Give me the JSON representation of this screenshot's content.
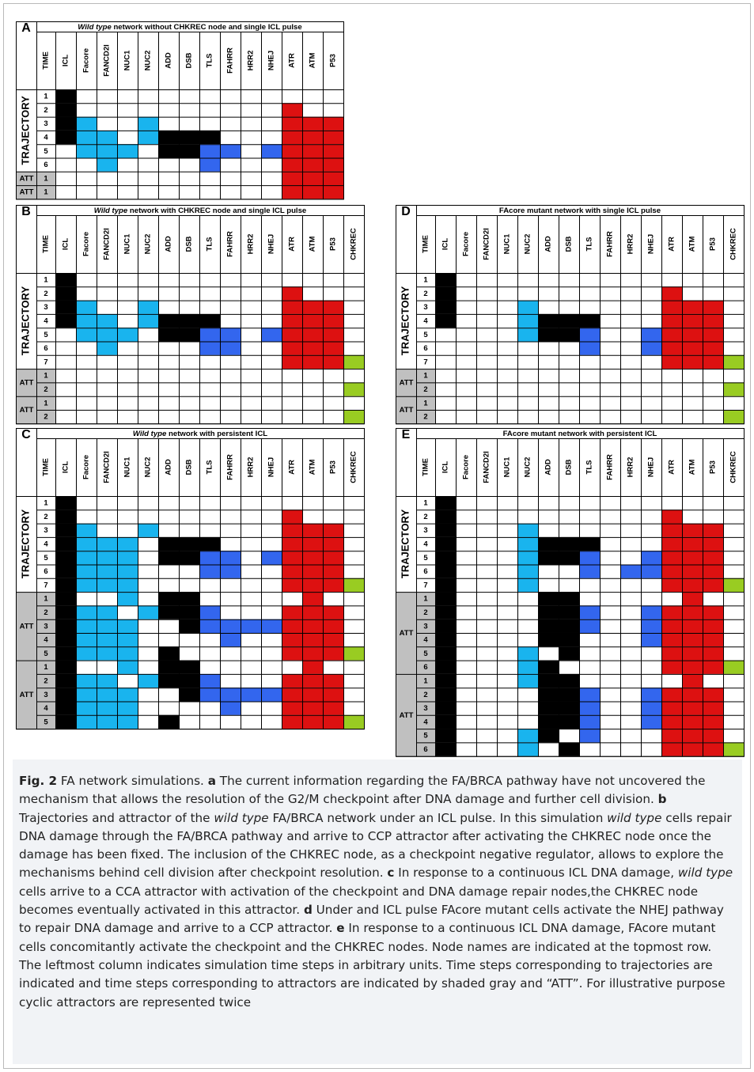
{
  "nodes": [
    "ICL",
    "Facore",
    "FANCD2I",
    "NUC1",
    "NUC2",
    "ADD",
    "DSB",
    "TLS",
    "FAHRR",
    "HRR2",
    "NHEJ",
    "ATR",
    "ATM",
    "P53",
    "CHKREC"
  ],
  "labels": {
    "time": "TIME",
    "trajectory": "TRAJECTORY",
    "att": "ATT"
  },
  "colors": {
    "black": "#000000",
    "cyan": "#19b4ee",
    "blue": "#3366ee",
    "red": "#dd1111",
    "green": "#99cc22",
    "gray": "#c0c0c0",
    "white": "#ffffff"
  },
  "panels": [
    {
      "id": "A",
      "title_em": "Wild type",
      "title_rest": " network without CHKREC node and single ICL pulse",
      "chkrec": false,
      "traj": [
        {
          "t": "1",
          "on": {
            "ICL": "k"
          }
        },
        {
          "t": "2",
          "on": {
            "ICL": "k",
            "ATR": "r"
          }
        },
        {
          "t": "3",
          "on": {
            "ICL": "k",
            "Facore": "c",
            "NUC2": "c",
            "ATR": "r",
            "ATM": "r",
            "P53": "r"
          }
        },
        {
          "t": "4",
          "on": {
            "ICL": "k",
            "Facore": "c",
            "FANCD2I": "c",
            "NUC2": "c",
            "ADD": "k",
            "DSB": "k",
            "TLS": "k",
            "ATR": "r",
            "ATM": "r",
            "P53": "r"
          }
        },
        {
          "t": "5",
          "on": {
            "Facore": "c",
            "FANCD2I": "c",
            "NUC1": "c",
            "ADD": "k",
            "DSB": "k",
            "TLS": "b",
            "FAHRR": "b",
            "NHEJ": "b",
            "ATR": "r",
            "ATM": "r",
            "P53": "r"
          }
        },
        {
          "t": "6",
          "on": {
            "FANCD2I": "c",
            "TLS": "b",
            "ATR": "r",
            "ATM": "r",
            "P53": "r"
          }
        }
      ],
      "att": [
        [
          {
            "t": "1",
            "on": {
              "ATR": "r",
              "ATM": "r",
              "P53": "r"
            }
          }
        ],
        [
          {
            "t": "1",
            "on": {
              "ATR": "r",
              "ATM": "r",
              "P53": "r"
            }
          }
        ]
      ]
    },
    {
      "id": "B",
      "title_em": "Wild type",
      "title_rest": " network with CHKREC node and single ICL pulse",
      "chkrec": true,
      "traj": [
        {
          "t": "1",
          "on": {
            "ICL": "k"
          }
        },
        {
          "t": "2",
          "on": {
            "ICL": "k",
            "ATR": "r"
          }
        },
        {
          "t": "3",
          "on": {
            "ICL": "k",
            "Facore": "c",
            "NUC2": "c",
            "ATR": "r",
            "ATM": "r",
            "P53": "r"
          }
        },
        {
          "t": "4",
          "on": {
            "ICL": "k",
            "Facore": "c",
            "FANCD2I": "c",
            "NUC2": "c",
            "ADD": "k",
            "DSB": "k",
            "TLS": "k",
            "ATR": "r",
            "ATM": "r",
            "P53": "r"
          }
        },
        {
          "t": "5",
          "on": {
            "Facore": "c",
            "FANCD2I": "c",
            "NUC1": "c",
            "ADD": "k",
            "DSB": "k",
            "TLS": "b",
            "FAHRR": "b",
            "NHEJ": "b",
            "ATR": "r",
            "ATM": "r",
            "P53": "r"
          }
        },
        {
          "t": "6",
          "on": {
            "FANCD2I": "c",
            "TLS": "b",
            "FAHRR": "b",
            "ATR": "r",
            "ATM": "r",
            "P53": "r"
          }
        },
        {
          "t": "7",
          "on": {
            "ATR": "r",
            "ATM": "r",
            "P53": "r",
            "CHKREC": "g"
          }
        }
      ],
      "att": [
        [
          {
            "t": "1",
            "on": {}
          },
          {
            "t": "2",
            "on": {
              "CHKREC": "g"
            }
          }
        ],
        [
          {
            "t": "1",
            "on": {}
          },
          {
            "t": "2",
            "on": {
              "CHKREC": "g"
            }
          }
        ]
      ]
    },
    {
      "id": "C",
      "title_em": "Wild type",
      "title_rest": " network with persistent ICL",
      "chkrec": true,
      "traj": [
        {
          "t": "1",
          "on": {
            "ICL": "k"
          }
        },
        {
          "t": "2",
          "on": {
            "ICL": "k",
            "ATR": "r"
          }
        },
        {
          "t": "3",
          "on": {
            "ICL": "k",
            "Facore": "c",
            "NUC2": "c",
            "ATR": "r",
            "ATM": "r",
            "P53": "r"
          }
        },
        {
          "t": "4",
          "on": {
            "ICL": "k",
            "Facore": "c",
            "FANCD2I": "c",
            "NUC1": "c",
            "ADD": "k",
            "DSB": "k",
            "TLS": "k",
            "ATR": "r",
            "ATM": "r",
            "P53": "r"
          }
        },
        {
          "t": "5",
          "on": {
            "ICL": "k",
            "Facore": "c",
            "FANCD2I": "c",
            "NUC1": "c",
            "ADD": "k",
            "DSB": "k",
            "TLS": "b",
            "FAHRR": "b",
            "NHEJ": "b",
            "ATR": "r",
            "ATM": "r",
            "P53": "r"
          }
        },
        {
          "t": "6",
          "on": {
            "ICL": "k",
            "Facore": "c",
            "FANCD2I": "c",
            "NUC1": "c",
            "TLS": "b",
            "FAHRR": "b",
            "ATR": "r",
            "ATM": "r",
            "P53": "r"
          }
        },
        {
          "t": "7",
          "on": {
            "ICL": "k",
            "Facore": "c",
            "FANCD2I": "c",
            "NUC1": "c",
            "ATR": "r",
            "ATM": "r",
            "P53": "r",
            "CHKREC": "g"
          }
        }
      ],
      "att": [
        [
          {
            "t": "1",
            "on": {
              "ICL": "k",
              "NUC1": "c",
              "ADD": "k",
              "DSB": "k",
              "ATM": "r"
            }
          },
          {
            "t": "2",
            "on": {
              "ICL": "k",
              "Facore": "c",
              "FANCD2I": "c",
              "NUC2": "c",
              "ADD": "k",
              "DSB": "k",
              "TLS": "b",
              "ATR": "r",
              "ATM": "r",
              "P53": "r"
            }
          },
          {
            "t": "3",
            "on": {
              "ICL": "k",
              "Facore": "c",
              "FANCD2I": "c",
              "NUC1": "c",
              "DSB": "k",
              "TLS": "b",
              "FAHRR": "b",
              "HRR2": "b",
              "NHEJ": "b",
              "ATR": "r",
              "ATM": "r",
              "P53": "r"
            }
          },
          {
            "t": "4",
            "on": {
              "ICL": "k",
              "Facore": "c",
              "FANCD2I": "c",
              "NUC1": "c",
              "FAHRR": "b",
              "ATR": "r",
              "ATM": "r",
              "P53": "r"
            }
          },
          {
            "t": "5",
            "on": {
              "ICL": "k",
              "Facore": "c",
              "FANCD2I": "c",
              "NUC1": "c",
              "ADD": "k",
              "ATR": "r",
              "ATM": "r",
              "P53": "r",
              "CHKREC": "g"
            }
          }
        ],
        [
          {
            "t": "1",
            "on": {
              "ICL": "k",
              "NUC1": "c",
              "ADD": "k",
              "DSB": "k",
              "ATM": "r"
            }
          },
          {
            "t": "2",
            "on": {
              "ICL": "k",
              "Facore": "c",
              "FANCD2I": "c",
              "NUC2": "c",
              "ADD": "k",
              "DSB": "k",
              "TLS": "b",
              "ATR": "r",
              "ATM": "r",
              "P53": "r"
            }
          },
          {
            "t": "3",
            "on": {
              "ICL": "k",
              "Facore": "c",
              "FANCD2I": "c",
              "NUC1": "c",
              "DSB": "k",
              "TLS": "b",
              "FAHRR": "b",
              "HRR2": "b",
              "NHEJ": "b",
              "ATR": "r",
              "ATM": "r",
              "P53": "r"
            }
          },
          {
            "t": "4",
            "on": {
              "ICL": "k",
              "Facore": "c",
              "FANCD2I": "c",
              "NUC1": "c",
              "FAHRR": "b",
              "ATR": "r",
              "ATM": "r",
              "P53": "r"
            }
          },
          {
            "t": "5",
            "on": {
              "ICL": "k",
              "Facore": "c",
              "FANCD2I": "c",
              "NUC1": "c",
              "ADD": "k",
              "ATR": "r",
              "ATM": "r",
              "P53": "r",
              "CHKREC": "g"
            }
          }
        ]
      ]
    },
    {
      "id": "D",
      "title_em": "",
      "title_rest": "FAcore mutant network with single ICL pulse",
      "chkrec": true,
      "traj": [
        {
          "t": "1",
          "on": {
            "ICL": "k"
          }
        },
        {
          "t": "2",
          "on": {
            "ICL": "k",
            "ATR": "r"
          }
        },
        {
          "t": "3",
          "on": {
            "ICL": "k",
            "NUC2": "c",
            "ATR": "r",
            "ATM": "r",
            "P53": "r"
          }
        },
        {
          "t": "4",
          "on": {
            "ICL": "k",
            "NUC2": "c",
            "ADD": "k",
            "DSB": "k",
            "TLS": "k",
            "ATR": "r",
            "ATM": "r",
            "P53": "r"
          }
        },
        {
          "t": "5",
          "on": {
            "NUC2": "c",
            "ADD": "k",
            "DSB": "k",
            "TLS": "b",
            "NHEJ": "b",
            "ATR": "r",
            "ATM": "r",
            "P53": "r"
          }
        },
        {
          "t": "6",
          "on": {
            "TLS": "b",
            "NHEJ": "b",
            "ATR": "r",
            "ATM": "r",
            "P53": "r"
          }
        },
        {
          "t": "7",
          "on": {
            "ATR": "r",
            "ATM": "r",
            "P53": "r",
            "CHKREC": "g"
          }
        }
      ],
      "att": [
        [
          {
            "t": "1",
            "on": {}
          },
          {
            "t": "2",
            "on": {
              "CHKREC": "g"
            }
          }
        ],
        [
          {
            "t": "1",
            "on": {}
          },
          {
            "t": "2",
            "on": {
              "CHKREC": "g"
            }
          }
        ]
      ]
    },
    {
      "id": "E",
      "title_em": "",
      "title_rest": "FAcore mutant network with persistent ICL",
      "chkrec": true,
      "traj": [
        {
          "t": "1",
          "on": {
            "ICL": "k"
          }
        },
        {
          "t": "2",
          "on": {
            "ICL": "k",
            "ATR": "r"
          }
        },
        {
          "t": "3",
          "on": {
            "ICL": "k",
            "NUC2": "c",
            "ATR": "r",
            "ATM": "r",
            "P53": "r"
          }
        },
        {
          "t": "4",
          "on": {
            "ICL": "k",
            "NUC2": "c",
            "ADD": "k",
            "DSB": "k",
            "TLS": "k",
            "ATR": "r",
            "ATM": "r",
            "P53": "r"
          }
        },
        {
          "t": "5",
          "on": {
            "ICL": "k",
            "NUC2": "c",
            "ADD": "k",
            "DSB": "k",
            "TLS": "b",
            "NHEJ": "b",
            "ATR": "r",
            "ATM": "r",
            "P53": "r"
          }
        },
        {
          "t": "6",
          "on": {
            "ICL": "k",
            "NUC2": "c",
            "TLS": "b",
            "HRR2": "b",
            "NHEJ": "b",
            "ATR": "r",
            "ATM": "r",
            "P53": "r"
          }
        },
        {
          "t": "7",
          "on": {
            "ICL": "k",
            "NUC2": "c",
            "ATR": "r",
            "ATM": "r",
            "P53": "r",
            "CHKREC": "g"
          }
        }
      ],
      "att": [
        [
          {
            "t": "1",
            "on": {
              "ICL": "k",
              "ADD": "k",
              "DSB": "k",
              "ATM": "r"
            }
          },
          {
            "t": "2",
            "on": {
              "ICL": "k",
              "ADD": "k",
              "DSB": "k",
              "TLS": "b",
              "NHEJ": "b",
              "ATR": "r",
              "ATM": "r",
              "P53": "r"
            }
          },
          {
            "t": "3",
            "on": {
              "ICL": "k",
              "ADD": "k",
              "DSB": "k",
              "TLS": "b",
              "NHEJ": "b",
              "ATR": "r",
              "ATM": "r",
              "P53": "r"
            }
          },
          {
            "t": "4",
            "on": {
              "ICL": "k",
              "ADD": "k",
              "DSB": "k",
              "NHEJ": "b",
              "ATR": "r",
              "ATM": "r",
              "P53": "r"
            }
          },
          {
            "t": "5",
            "on": {
              "ICL": "k",
              "NUC2": "c",
              "DSB": "k",
              "ATR": "r",
              "ATM": "r",
              "P53": "r"
            }
          },
          {
            "t": "6",
            "on": {
              "ICL": "k",
              "NUC2": "c",
              "ADD": "k",
              "ATR": "r",
              "ATM": "r",
              "P53": "r",
              "CHKREC": "g"
            }
          }
        ],
        [
          {
            "t": "1",
            "on": {
              "ICL": "k",
              "NUC2": "c",
              "ADD": "k",
              "DSB": "k",
              "ATM": "r"
            }
          },
          {
            "t": "2",
            "on": {
              "ICL": "k",
              "ADD": "k",
              "DSB": "k",
              "TLS": "b",
              "NHEJ": "b",
              "ATR": "r",
              "ATM": "r",
              "P53": "r"
            }
          },
          {
            "t": "3",
            "on": {
              "ICL": "k",
              "ADD": "k",
              "DSB": "k",
              "TLS": "b",
              "NHEJ": "b",
              "ATR": "r",
              "ATM": "r",
              "P53": "r"
            }
          },
          {
            "t": "4",
            "on": {
              "ICL": "k",
              "ADD": "k",
              "DSB": "k",
              "TLS": "b",
              "NHEJ": "b",
              "ATR": "r",
              "ATM": "r",
              "P53": "r"
            }
          },
          {
            "t": "5",
            "on": {
              "ICL": "k",
              "NUC2": "c",
              "ADD": "k",
              "TLS": "b",
              "ATR": "r",
              "ATM": "r",
              "P53": "r"
            }
          },
          {
            "t": "6",
            "on": {
              "ICL": "k",
              "NUC2": "c",
              "DSB": "k",
              "ATR": "r",
              "ATM": "r",
              "P53": "r",
              "CHKREC": "g"
            }
          }
        ]
      ]
    }
  ],
  "caption": {
    "fig": "Fig. 2",
    "title": "  FA network simulations. ",
    "a_letter": "a",
    "a_text": " The current information regarding the FA/BRCA pathway have not uncovered the mechanism that allows the resolution of the G2/M checkpoint after DNA damage and further cell division. ",
    "b_letter": "b",
    "b_text_1": " Trajectories and attractor of the ",
    "b_em_1": "wild type",
    "b_text_2": " FA/BRCA network under an ICL pulse. In this simulation ",
    "b_em_2": "wild type",
    "b_text_3": " cells repair DNA damage through the FA/BRCA pathway and arrive to CCP attractor after activating the CHKREC node once the damage has been fixed. The inclusion of the CHKREC node, as a checkpoint negative regulator, allows to explore the mechanisms behind cell division after checkpoint resolution. ",
    "c_letter": "c",
    "c_text_1": " In response to a continuous ICL DNA damage, ",
    "c_em": "wild type",
    "c_text_2": " cells arrive to a CCA attractor with activation of the checkpoint and DNA damage repair nodes,the CHKREC node becomes eventually activated in this attractor. ",
    "d_letter": "d",
    "d_text": " Under and ICL pulse FAcore mutant cells activate the NHEJ pathway to repair DNA damage and arrive to a CCP attractor. ",
    "e_letter": "e",
    "e_text": " In response to a continuous ICL DNA damage, FAcore mutant cells concomitantly activate the checkpoint and the CHKREC nodes. Node names are indicated at the topmost row. The leftmost column indicates simulation time steps in arbitrary units. Time steps corresponding to trajectories are indicated and time steps corresponding to attractors are indicated by shaded gray and “ATT”. For illustrative purpose cyclic attractors are represented twice"
  }
}
